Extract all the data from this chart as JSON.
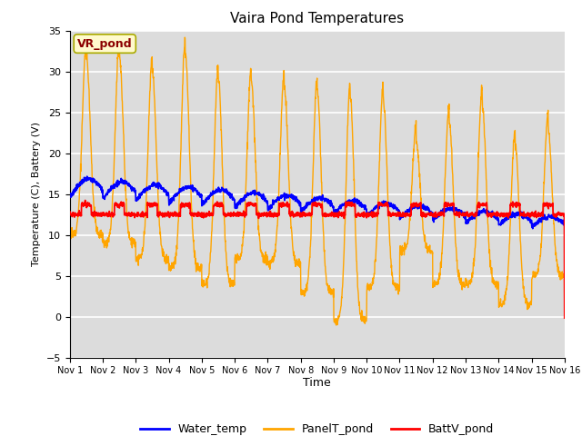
{
  "title": "Vaira Pond Temperatures",
  "xlabel": "Time",
  "ylabel": "Temperature (C), Battery (V)",
  "ylim": [
    -5,
    35
  ],
  "yticks": [
    -5,
    0,
    5,
    10,
    15,
    20,
    25,
    30,
    35
  ],
  "xlim": [
    0,
    15
  ],
  "xtick_labels": [
    "Nov 1",
    "Nov 2",
    "Nov 3",
    "Nov 4",
    "Nov 5",
    "Nov 6",
    "Nov 7",
    "Nov 8",
    "Nov 9",
    "Nov 10",
    "Nov 11",
    "Nov 12",
    "Nov 13",
    "Nov 14",
    "Nov 15",
    "Nov 16"
  ],
  "legend_labels": [
    "Water_temp",
    "PanelT_pond",
    "BattV_pond"
  ],
  "legend_colors": [
    "blue",
    "orange",
    "red"
  ],
  "water_color": "blue",
  "panel_color": "orange",
  "batt_color": "red",
  "annotation_text": "VR_pond",
  "annotation_color": "#8B0000",
  "annotation_bg": "#FFFACD",
  "bg_color": "#DCDCDC",
  "grid_color": "white",
  "panel_peaks": [
    32,
    32,
    30,
    32,
    29,
    28.5,
    28,
    27.5,
    27,
    26.5,
    21.5,
    24,
    26,
    21,
    23
  ],
  "panel_nights": [
    10,
    9,
    7,
    6,
    4,
    7,
    6.5,
    3,
    -0.5,
    3.5,
    8,
    4,
    4,
    1.5,
    5
  ],
  "water_start": 15.2,
  "water_end": 11.0
}
